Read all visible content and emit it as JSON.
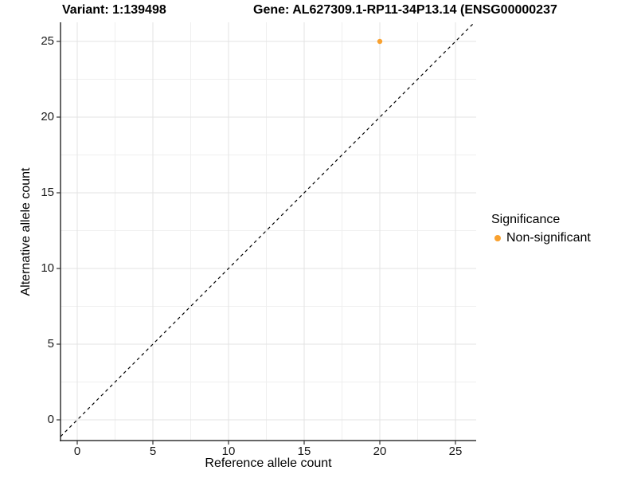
{
  "title": {
    "variant": "Variant: 1:139498",
    "gene": "Gene: AL627309.1-RP11-34P13.14 (ENSG00000237"
  },
  "axes": {
    "x_label": "Reference allele count",
    "y_label": "Alternative allele count"
  },
  "legend": {
    "title": "Significance",
    "items": [
      {
        "label": "Non-significant",
        "color": "#F9A12F"
      }
    ]
  },
  "colors": {
    "point_orange": "#F9A12F",
    "axis_line": "#333333",
    "grid_major": "#E3E3E3",
    "grid_minor": "#EFEFEF",
    "reference_line": "#000000"
  },
  "chart_data": {
    "type": "scatter",
    "title": "Variant: 1:139498    Gene: AL627309.1-RP11-34P13.14 (ENSG00000237",
    "xlabel": "Reference allele count",
    "ylabel": "Alternative allele count",
    "x_ticks": [
      0,
      5,
      10,
      15,
      20,
      25
    ],
    "y_ticks": [
      0,
      5,
      10,
      15,
      20,
      25
    ],
    "xlim": [
      -1.1,
      26.4
    ],
    "ylim": [
      -1.4,
      26.3
    ],
    "grid": "major+minor",
    "legend_position": "right-center",
    "series": [
      {
        "name": "Non-significant",
        "color": "#F9A12F",
        "points": [
          {
            "x": 20,
            "y": 25
          }
        ]
      }
    ],
    "reference_line": {
      "kind": "identity y=x",
      "style": "dashed",
      "color": "#000000"
    }
  }
}
